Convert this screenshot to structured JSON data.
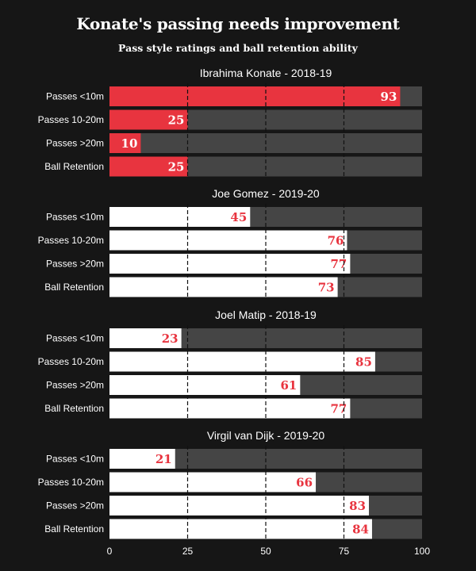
{
  "colors": {
    "background": "#161616",
    "track": "#454545",
    "highlight": "#e8343f",
    "default_bar": "#ffffff",
    "gridline": "#111111",
    "value_on_highlight": "#ffffff",
    "value_on_default": "#e8343f"
  },
  "chart_data": {
    "type": "bar",
    "orientation": "horizontal",
    "title": "Konate's passing needs improvement",
    "subtitle": "Pass style ratings and ball retention ability",
    "categories": [
      "Passes <10m",
      "Passes 10-20m",
      "Passes >20m",
      "Ball Retention"
    ],
    "xlim": [
      0,
      100
    ],
    "xticks": [
      0,
      25,
      50,
      75,
      100
    ],
    "grid": "dashed vertical at 25, 50, 75",
    "panels": [
      {
        "title": "Ibrahima Konate - 2018-19",
        "highlight": true,
        "values": [
          93,
          25,
          10,
          25
        ]
      },
      {
        "title": "Joe Gomez - 2019-20",
        "highlight": false,
        "values": [
          45,
          76,
          77,
          73
        ]
      },
      {
        "title": "Joel Matip - 2018-19",
        "highlight": false,
        "values": [
          23,
          85,
          61,
          77
        ]
      },
      {
        "title": "Virgil van Dijk - 2019-20",
        "highlight": false,
        "values": [
          21,
          66,
          83,
          84
        ]
      }
    ]
  }
}
